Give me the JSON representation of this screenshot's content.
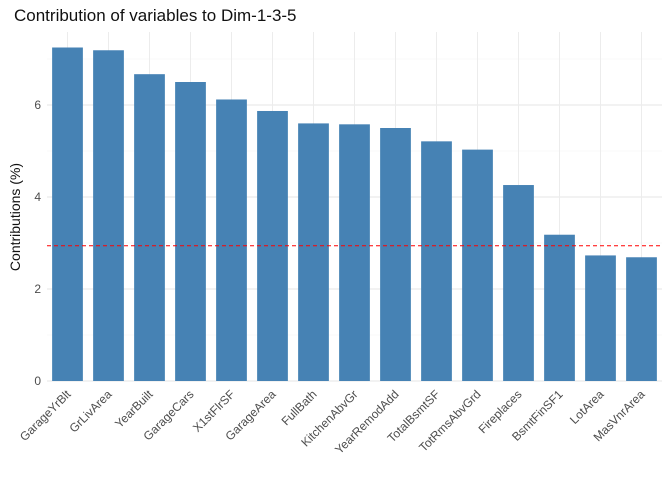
{
  "chart_data": {
    "type": "bar",
    "title": "Contribution of variables to Dim-1-3-5",
    "xlabel": "",
    "ylabel": "Contributions (%)",
    "categories": [
      "GarageYrBlt",
      "GrLivArea",
      "YearBuilt",
      "GarageCars",
      "X1stFlrSF",
      "GarageArea",
      "FullBath",
      "KitchenAbvGr",
      "YearRemodAdd",
      "TotalBsmtSF",
      "TotRmsAbvGrd",
      "Fireplaces",
      "BsmtFinSF1",
      "LotArea",
      "MasVnrArea"
    ],
    "values": [
      7.25,
      7.19,
      6.67,
      6.5,
      6.12,
      5.87,
      5.6,
      5.58,
      5.5,
      5.21,
      5.03,
      4.26,
      3.18,
      2.73,
      2.69
    ],
    "reference_line": 2.94,
    "ylim": [
      0,
      7.5
    ],
    "yticks": [
      0,
      2,
      4,
      6
    ],
    "grid": true,
    "legend": "none",
    "bar_color": "#4682B4",
    "reference_line_color": "#FF0000"
  }
}
